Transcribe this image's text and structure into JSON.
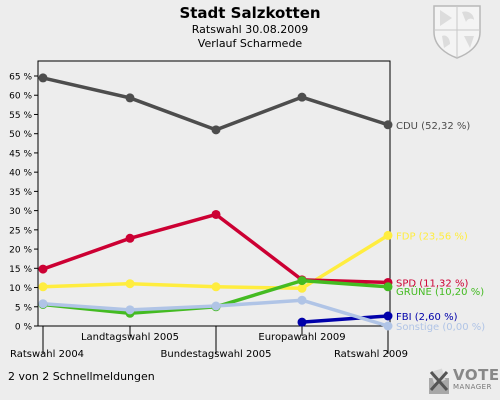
{
  "header": {
    "title": "Stadt Salzkotten",
    "subtitle1": "Ratswahl 30.08.2009",
    "subtitle2": "Verlauf Scharmede"
  },
  "footer": {
    "note": "2 von 2 Schnellmeldungen",
    "logo_line1": "VOTE",
    "logo_line2": "MANAGER"
  },
  "chart_data": {
    "type": "line",
    "title": "Stadt Salzkotten",
    "ylim": [
      0,
      65
    ],
    "y_ticks": [
      "0 %",
      "5 %",
      "10 %",
      "15 %",
      "20 %",
      "25 %",
      "30 %",
      "35 %",
      "40 %",
      "45 %",
      "50 %",
      "55 %",
      "60 %",
      "65 %"
    ],
    "categories": [
      "Ratswahl 2004",
      "Landtagswahl 2005",
      "Bundestagswahl 2005",
      "Europawahl 2009",
      "Ratswahl 2009"
    ],
    "grid": false,
    "legend": "end-labels",
    "series": [
      {
        "name": "CDU",
        "end_label": "CDU (52,32 %)",
        "color": "#4d4d4d",
        "values": [
          64.5,
          59.3,
          51.0,
          59.5,
          52.32
        ]
      },
      {
        "name": "FDP",
        "end_label": "FDP (23,56 %)",
        "color": "#ffed3f",
        "values": [
          10.2,
          11.0,
          10.2,
          9.8,
          23.56
        ]
      },
      {
        "name": "SPD",
        "end_label": "SPD (11,32 %)",
        "color": "#cc0033",
        "values": [
          14.8,
          22.8,
          29.0,
          12.0,
          11.32
        ]
      },
      {
        "name": "GRÜNE",
        "end_label": "GRÜNE (10,20 %)",
        "color": "#44bb22",
        "values": [
          5.6,
          3.3,
          5.0,
          11.8,
          10.2
        ]
      },
      {
        "name": "FBI",
        "end_label": "FBI (2,60 %)",
        "color": "#0000aa",
        "values": [
          null,
          null,
          null,
          1.0,
          2.6
        ]
      },
      {
        "name": "Sonstige",
        "end_label": "Sonstige (0,00 %)",
        "color": "#b0c4e6",
        "values": [
          5.8,
          4.2,
          5.2,
          6.7,
          0.0
        ]
      }
    ]
  }
}
